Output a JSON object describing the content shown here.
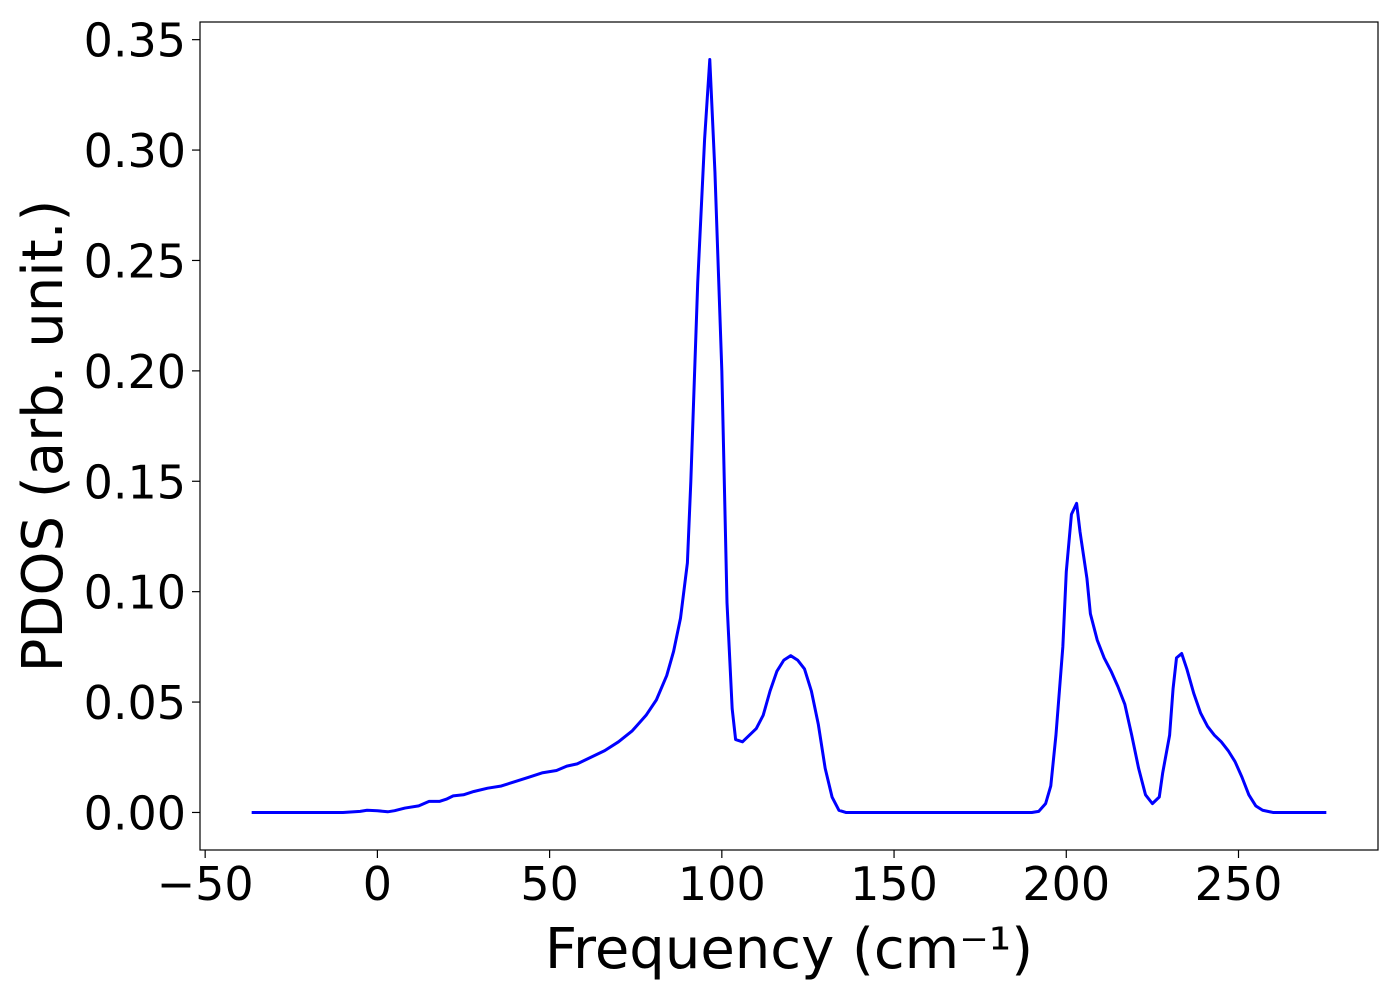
{
  "chart_data": {
    "type": "line",
    "xlabel": "Frequency (cm⁻¹)",
    "ylabel": "PDOS (arb. unit.)",
    "color": "#0000ff",
    "xlim": [
      -51.5,
      290.5
    ],
    "ylim": [
      -0.017,
      0.358
    ],
    "xticks": [
      {
        "value": -50,
        "label": "−50"
      },
      0,
      50,
      100,
      150,
      200,
      250
    ],
    "yticks": [
      {
        "value": 0,
        "label": "0.00"
      },
      {
        "value": 0.05,
        "label": "0.05"
      },
      {
        "value": 0.1,
        "label": "0.10"
      },
      {
        "value": 0.15,
        "label": "0.15"
      },
      {
        "value": 0.2,
        "label": "0.20"
      },
      {
        "value": 0.25,
        "label": "0.25"
      },
      {
        "value": 0.3,
        "label": "0.30"
      },
      {
        "value": 0.35,
        "label": "0.35"
      }
    ],
    "x": [
      -36.5,
      -20,
      -10,
      -5,
      -3,
      0,
      3,
      5,
      8,
      12,
      15,
      18,
      20,
      22,
      25,
      28,
      32,
      36,
      40,
      44,
      48,
      52,
      55,
      58,
      62,
      66,
      70,
      74,
      78,
      81,
      84,
      86,
      88,
      90,
      91,
      93,
      95,
      96.5,
      98,
      100,
      101.5,
      103,
      104,
      106,
      108,
      110,
      112,
      114,
      116,
      118,
      120,
      122,
      124,
      126,
      128,
      130,
      132,
      134,
      136,
      160,
      190,
      192,
      194,
      195.5,
      197,
      199,
      200,
      201.5,
      203,
      204,
      206,
      207,
      209,
      211,
      213,
      215,
      217,
      219,
      221,
      223,
      225,
      227,
      228,
      230,
      231,
      232,
      233.5,
      235,
      237,
      239,
      241,
      243,
      245,
      247,
      249,
      251,
      253,
      255,
      257,
      260,
      275.5
    ],
    "values": [
      0,
      0,
      0,
      0.0005,
      0.001,
      0.0008,
      0.0003,
      0.0008,
      0.002,
      0.003,
      0.005,
      0.005,
      0.006,
      0.0075,
      0.008,
      0.0095,
      0.011,
      0.012,
      0.014,
      0.016,
      0.018,
      0.019,
      0.021,
      0.022,
      0.025,
      0.028,
      0.032,
      0.037,
      0.044,
      0.051,
      0.062,
      0.073,
      0.088,
      0.113,
      0.15,
      0.24,
      0.305,
      0.341,
      0.29,
      0.2,
      0.095,
      0.047,
      0.033,
      0.032,
      0.035,
      0.038,
      0.044,
      0.055,
      0.064,
      0.069,
      0.071,
      0.069,
      0.065,
      0.055,
      0.04,
      0.02,
      0.007,
      0.001,
      0,
      0,
      0,
      0.0005,
      0.004,
      0.012,
      0.035,
      0.075,
      0.109,
      0.135,
      0.14,
      0.127,
      0.106,
      0.09,
      0.078,
      0.07,
      0.064,
      0.057,
      0.049,
      0.035,
      0.02,
      0.008,
      0.004,
      0.007,
      0.018,
      0.035,
      0.056,
      0.07,
      0.072,
      0.065,
      0.054,
      0.045,
      0.039,
      0.035,
      0.032,
      0.028,
      0.023,
      0.016,
      0.008,
      0.003,
      0.001,
      0,
      0
    ]
  }
}
